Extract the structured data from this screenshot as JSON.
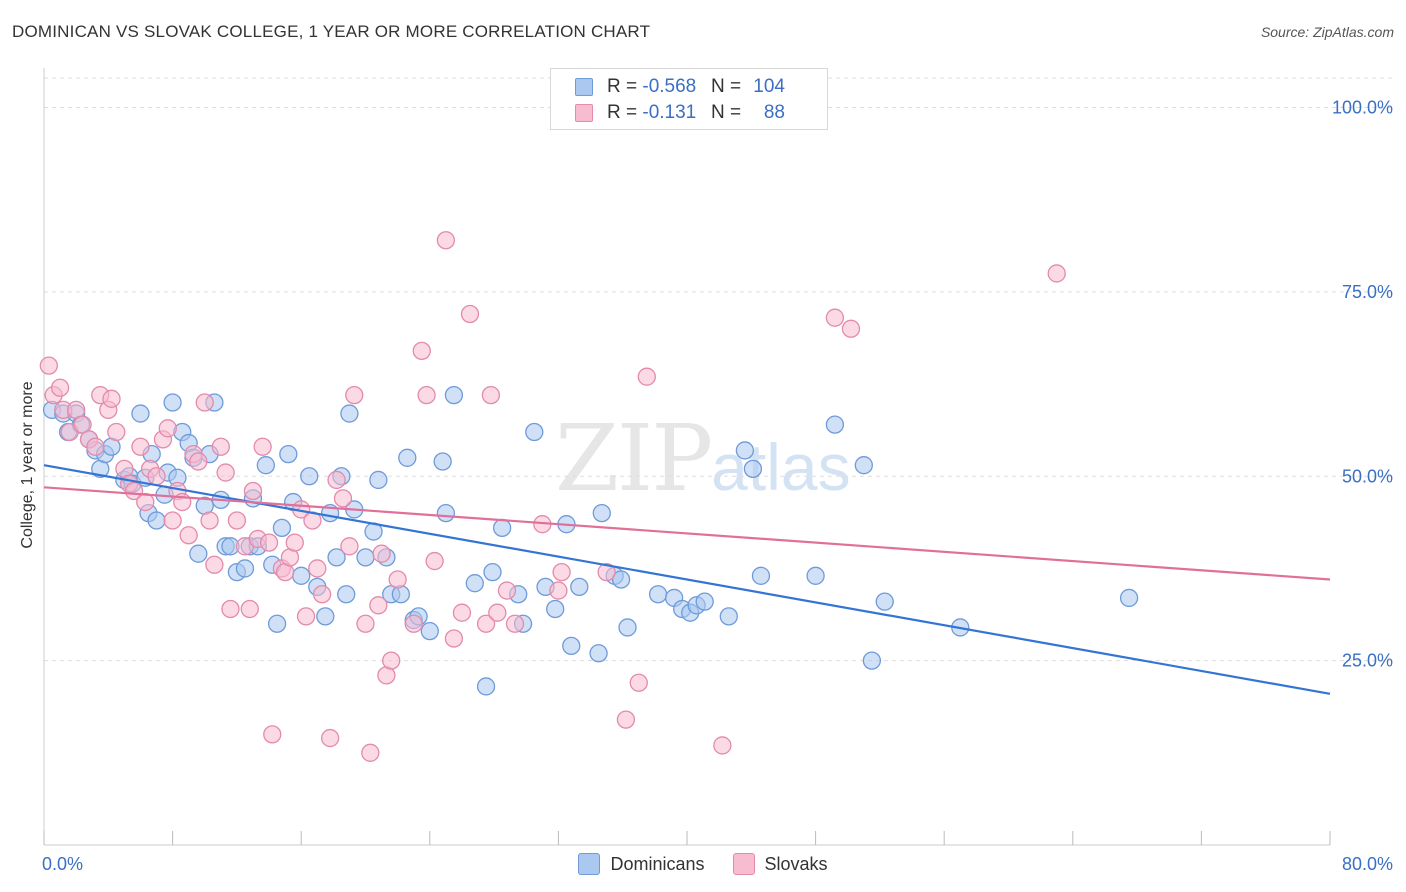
{
  "title": "DOMINICAN VS SLOVAK COLLEGE, 1 YEAR OR MORE CORRELATION CHART",
  "source": "Source: ZipAtlas.com",
  "watermark": {
    "zip": "ZIP",
    "atlas": "atlas"
  },
  "colors": {
    "blue_fill": "#aac8f0",
    "blue_stroke": "#6f9bd9",
    "blue_line": "#3474d4",
    "pink_fill": "#f7bcd0",
    "pink_stroke": "#e48aab",
    "pink_line": "#e0709a",
    "axis_text": "#3a6fc4",
    "grid": "#dddddd"
  },
  "legend_top": [
    {
      "r_label": "R = ",
      "r_value": "-0.568",
      "n_label": "N = ",
      "n_value": "104"
    },
    {
      "r_label": "R = ",
      "r_value": "-0.131",
      "n_label": "N = ",
      "n_value": "88"
    }
  ],
  "legend_bottom": [
    "Dominicans",
    "Slovaks"
  ],
  "chart_data": {
    "type": "scatter",
    "title": "DOMINICAN VS SLOVAK COLLEGE, 1 YEAR OR MORE CORRELATION CHART",
    "ylabel": "College, 1 year or more",
    "xlabel": "",
    "xlim": [
      0,
      80
    ],
    "ylim": [
      0,
      104
    ],
    "x_tick_labels": [
      "0.0%",
      "80.0%"
    ],
    "y_tick_labels": [
      "25.0%",
      "50.0%",
      "75.0%",
      "100.0%"
    ],
    "y_ticks": [
      25,
      50,
      75,
      100
    ],
    "grid": true,
    "legend_placement": "top-center and bottom",
    "series": [
      {
        "name": "Dominicans",
        "R": -0.568,
        "N": 104,
        "trend": [
          [
            0,
            51.5
          ],
          [
            80,
            20.5
          ]
        ],
        "points": [
          [
            0.5,
            59
          ],
          [
            1.2,
            58.5
          ],
          [
            1.5,
            56
          ],
          [
            2,
            58.5
          ],
          [
            2.3,
            57
          ],
          [
            2.8,
            55
          ],
          [
            3.2,
            53.5
          ],
          [
            3.5,
            51
          ],
          [
            3.8,
            53
          ],
          [
            4.2,
            54
          ],
          [
            5,
            49.5
          ],
          [
            5.3,
            50
          ],
          [
            5.5,
            49
          ],
          [
            6,
            58.5
          ],
          [
            6.3,
            49.8
          ],
          [
            6.5,
            45
          ],
          [
            6.7,
            53
          ],
          [
            7,
            44
          ],
          [
            7.5,
            47.5
          ],
          [
            7.7,
            50.5
          ],
          [
            8,
            60
          ],
          [
            8.3,
            49.8
          ],
          [
            8.6,
            56
          ],
          [
            9,
            54.5
          ],
          [
            9.3,
            52.5
          ],
          [
            9.6,
            39.5
          ],
          [
            10,
            46
          ],
          [
            10.3,
            53
          ],
          [
            10.6,
            60
          ],
          [
            11,
            46.8
          ],
          [
            11.3,
            40.5
          ],
          [
            11.6,
            40.5
          ],
          [
            12,
            37
          ],
          [
            12.5,
            37.5
          ],
          [
            12.8,
            40.5
          ],
          [
            13,
            47
          ],
          [
            13.3,
            40.5
          ],
          [
            13.8,
            51.5
          ],
          [
            14.2,
            38
          ],
          [
            14.5,
            30
          ],
          [
            14.8,
            43
          ],
          [
            15.2,
            53
          ],
          [
            15.5,
            46.5
          ],
          [
            16,
            36.5
          ],
          [
            16.5,
            50
          ],
          [
            17,
            35
          ],
          [
            17.5,
            31
          ],
          [
            17.8,
            45
          ],
          [
            18.2,
            39
          ],
          [
            18.5,
            50
          ],
          [
            18.8,
            34
          ],
          [
            19,
            58.5
          ],
          [
            19.3,
            45.5
          ],
          [
            20,
            39
          ],
          [
            20.5,
            42.5
          ],
          [
            20.8,
            49.5
          ],
          [
            21.3,
            39
          ],
          [
            21.6,
            34
          ],
          [
            22.2,
            34
          ],
          [
            22.6,
            52.5
          ],
          [
            23,
            30.5
          ],
          [
            23.3,
            31
          ],
          [
            24,
            29
          ],
          [
            24.8,
            52
          ],
          [
            25,
            45
          ],
          [
            25.5,
            61
          ],
          [
            26.8,
            35.5
          ],
          [
            27.5,
            21.5
          ],
          [
            27.9,
            37
          ],
          [
            28.5,
            43
          ],
          [
            29.5,
            34
          ],
          [
            29.8,
            30
          ],
          [
            30.5,
            56
          ],
          [
            31.2,
            35
          ],
          [
            31.8,
            32
          ],
          [
            32.5,
            43.5
          ],
          [
            32.8,
            27
          ],
          [
            33.3,
            35
          ],
          [
            34.5,
            26
          ],
          [
            34.7,
            45
          ],
          [
            35.5,
            36.5
          ],
          [
            35.9,
            36
          ],
          [
            36.3,
            29.5
          ],
          [
            38.2,
            34
          ],
          [
            39.2,
            33.5
          ],
          [
            39.7,
            32
          ],
          [
            40.2,
            31.5
          ],
          [
            40.6,
            32.5
          ],
          [
            41.1,
            33
          ],
          [
            42.6,
            31
          ],
          [
            43.6,
            53.5
          ],
          [
            44.1,
            51
          ],
          [
            44.6,
            36.5
          ],
          [
            48,
            36.5
          ],
          [
            49.2,
            57
          ],
          [
            51,
            51.5
          ],
          [
            51.5,
            25
          ],
          [
            52.3,
            33
          ],
          [
            57,
            29.5
          ],
          [
            67.5,
            33.5
          ]
        ]
      },
      {
        "name": "Slovaks",
        "R": -0.131,
        "N": 88,
        "trend": [
          [
            0,
            48.5
          ],
          [
            80,
            36
          ]
        ],
        "points": [
          [
            0.3,
            65
          ],
          [
            0.6,
            61
          ],
          [
            1,
            62
          ],
          [
            1.2,
            59
          ],
          [
            1.6,
            56
          ],
          [
            2,
            59
          ],
          [
            2.4,
            57
          ],
          [
            2.8,
            55
          ],
          [
            3.2,
            54
          ],
          [
            3.5,
            61
          ],
          [
            4,
            59
          ],
          [
            4.2,
            60.5
          ],
          [
            4.5,
            56
          ],
          [
            5,
            51
          ],
          [
            5.3,
            49
          ],
          [
            5.6,
            48
          ],
          [
            6,
            54
          ],
          [
            6.3,
            46.5
          ],
          [
            6.6,
            51
          ],
          [
            7,
            50
          ],
          [
            7.4,
            55
          ],
          [
            7.7,
            56.5
          ],
          [
            8,
            44
          ],
          [
            8.3,
            48
          ],
          [
            8.6,
            46.5
          ],
          [
            9,
            42
          ],
          [
            9.3,
            53
          ],
          [
            9.6,
            52
          ],
          [
            10,
            60
          ],
          [
            10.3,
            44
          ],
          [
            10.6,
            38
          ],
          [
            11,
            54
          ],
          [
            11.3,
            50.5
          ],
          [
            11.6,
            32
          ],
          [
            12,
            44
          ],
          [
            12.5,
            40.5
          ],
          [
            12.8,
            32
          ],
          [
            13,
            48
          ],
          [
            13.3,
            41.5
          ],
          [
            13.6,
            54
          ],
          [
            14,
            41
          ],
          [
            14.2,
            15
          ],
          [
            14.8,
            37.5
          ],
          [
            15,
            37
          ],
          [
            15.3,
            39
          ],
          [
            15.6,
            41
          ],
          [
            16,
            45.5
          ],
          [
            16.3,
            31
          ],
          [
            16.7,
            44
          ],
          [
            17,
            37.5
          ],
          [
            17.3,
            34
          ],
          [
            17.8,
            14.5
          ],
          [
            18.2,
            49.5
          ],
          [
            18.6,
            47
          ],
          [
            19,
            40.5
          ],
          [
            19.3,
            61
          ],
          [
            20,
            30
          ],
          [
            20.3,
            12.5
          ],
          [
            20.8,
            32.5
          ],
          [
            21,
            39.5
          ],
          [
            21.3,
            23
          ],
          [
            21.6,
            25
          ],
          [
            22,
            36
          ],
          [
            23,
            30
          ],
          [
            23.5,
            67
          ],
          [
            23.8,
            61
          ],
          [
            24.3,
            38.5
          ],
          [
            25,
            82
          ],
          [
            25.5,
            28
          ],
          [
            26,
            31.5
          ],
          [
            26.5,
            72
          ],
          [
            27.5,
            30
          ],
          [
            27.8,
            61
          ],
          [
            28.2,
            31.5
          ],
          [
            28.8,
            34.5
          ],
          [
            29.3,
            30
          ],
          [
            31,
            43.5
          ],
          [
            32,
            34.5
          ],
          [
            32.2,
            37
          ],
          [
            35,
            37
          ],
          [
            36.2,
            17
          ],
          [
            37,
            22
          ],
          [
            37.5,
            63.5
          ],
          [
            42.2,
            13.5
          ],
          [
            49.2,
            71.5
          ],
          [
            50.2,
            70
          ],
          [
            63,
            77.5
          ]
        ]
      }
    ]
  }
}
